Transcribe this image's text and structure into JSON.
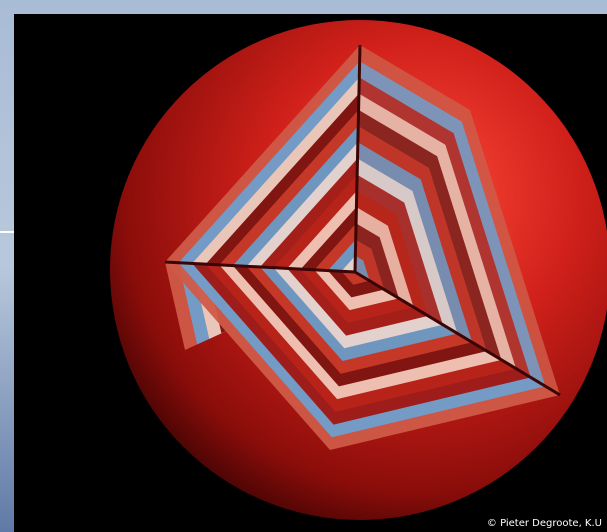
{
  "credit": "© Pieter Degroote, K.U"
}
